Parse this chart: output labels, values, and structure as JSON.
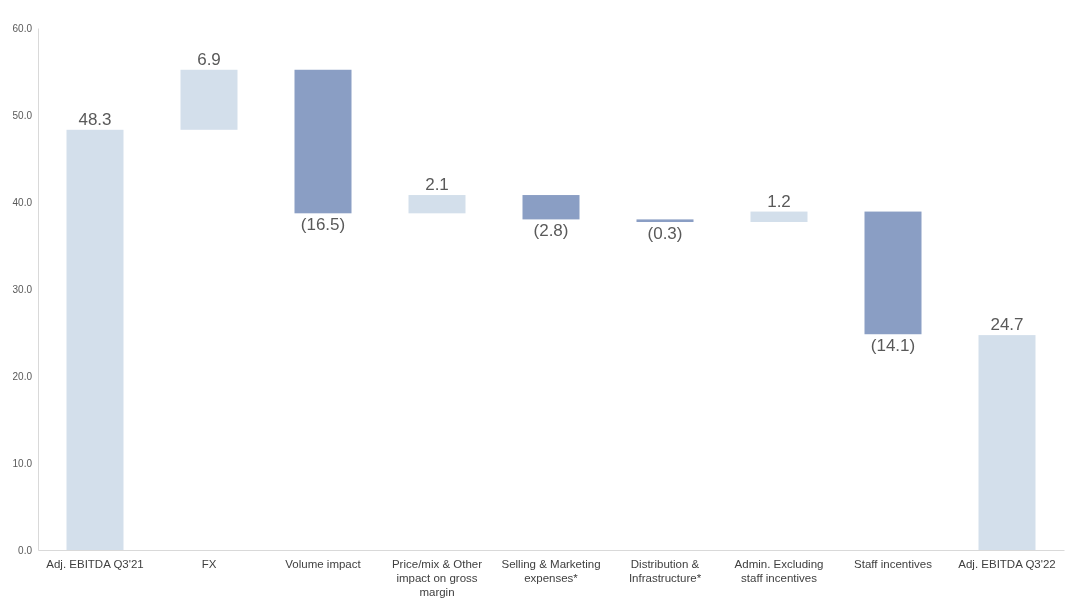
{
  "chart_data": {
    "type": "bar",
    "categories": [
      "Adj. EBITDA Q3'21",
      "FX",
      "Volume impact",
      "Price/mix & Other impact on gross margin",
      "Selling & Marketing expenses*",
      "Distribution & Infrastructure*",
      "Admin. Excluding staff incentives",
      "Staff incentives",
      "Adj. EBITDA Q3'22"
    ],
    "values": [
      48.3,
      6.9,
      -16.5,
      2.1,
      -2.8,
      -0.3,
      1.2,
      -14.1,
      24.7
    ],
    "base": [
      0,
      48.3,
      55.2,
      38.7,
      40.8,
      38.0,
      37.7,
      38.9,
      0
    ],
    "colors": [
      "#d3dfeb",
      "#d3dfeb",
      "#8a9ec4",
      "#d3dfeb",
      "#8a9ec4",
      "#8a9ec4",
      "#d3dfeb",
      "#8a9ec4",
      "#d3dfeb"
    ],
    "value_labels": [
      "48.3",
      "6.9",
      "(16.5)",
      "2.1",
      "(2.8)",
      "(0.3)",
      "1.2",
      "(14.1)",
      "24.7"
    ],
    "ylim": [
      0,
      60
    ],
    "yticks": [
      {
        "value": 0,
        "label": "0.0"
      },
      {
        "value": 10,
        "label": "10.0"
      },
      {
        "value": 20,
        "label": "20.0"
      },
      {
        "value": 30,
        "label": "30.0"
      },
      {
        "value": 40,
        "label": "40.0"
      },
      {
        "value": 50,
        "label": "50.0"
      },
      {
        "value": 60,
        "label": "60.0"
      }
    ],
    "grid": false
  }
}
